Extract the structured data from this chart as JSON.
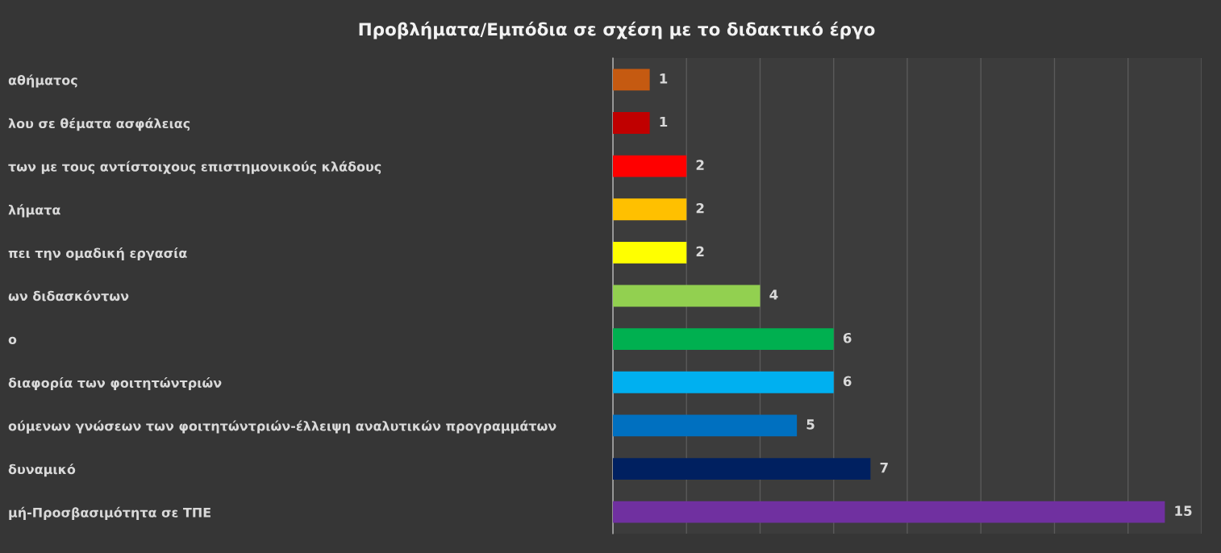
{
  "chart_data": {
    "type": "bar",
    "orientation": "horizontal",
    "title": "Προβλήματα/Εμπόδια σε σχέση με το διδακτικό έργο",
    "categories": [
      "αθήματος",
      "λου σε θέματα ασφάλειας",
      "των με τους αντίστοιχους επιστημονικούς κλάδους",
      "λήματα",
      "πει την ομαδική εργασία",
      "ων διδασκόντων",
      "ο",
      "διαφορία των φοιτητώντριών",
      "ούμενων γνώσεων των φοιτητώντριών-έλλειψη αναλυτικών προγραμμάτων",
      "δυναμικό",
      "μή-Προσβασιμότητα σε ΤΠΕ"
    ],
    "values": [
      1,
      1,
      2,
      2,
      2,
      4,
      6,
      6,
      5,
      7,
      15
    ],
    "colors": [
      "#c55a11",
      "#c00000",
      "#ff0000",
      "#ffc000",
      "#ffff00",
      "#92d050",
      "#00b050",
      "#00b0f0",
      "#0070c0",
      "#002060",
      "#7030a0"
    ],
    "xlim": [
      0,
      16
    ],
    "xticks": [
      {
        "value": 0,
        "label": null
      },
      {
        "value": 2,
        "label": null
      },
      {
        "value": 4,
        "label": null
      },
      {
        "value": 6,
        "label": null
      },
      {
        "value": 8,
        "label": null
      },
      {
        "value": 10,
        "label": null
      },
      {
        "value": 12,
        "label": null
      },
      {
        "value": 14,
        "label": null
      },
      {
        "value": 16,
        "label": null
      }
    ],
    "tick_labels": "y",
    "grid": "x",
    "data_labels": true,
    "legend": false
  }
}
